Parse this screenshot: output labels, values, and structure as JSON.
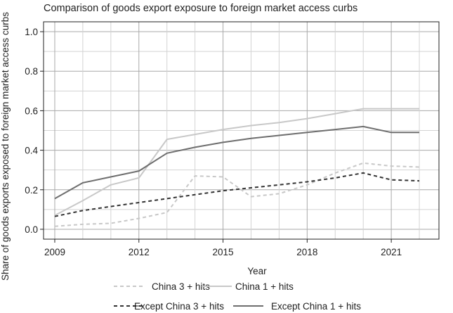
{
  "chart_data": {
    "type": "line",
    "title": "Comparison of goods export exposure to foreign market access curbs",
    "xlabel": "Year",
    "ylabel": "Share of goods exports exposed to foreign market access curbs",
    "xlim": [
      2008.6,
      2022.7
    ],
    "ylim": [
      -0.05,
      1.05
    ],
    "xticks": [
      2009,
      2012,
      2015,
      2018,
      2021
    ],
    "yticks": [
      0.0,
      0.2,
      0.4,
      0.6,
      0.8,
      1.0
    ],
    "xtick_labels": [
      "2009",
      "2012",
      "2015",
      "2018",
      "2021"
    ],
    "ytick_labels": [
      "0.0",
      "0.2",
      "0.4",
      "0.6",
      "0.8",
      "1.0"
    ],
    "grid": true,
    "legend_position": "bottom",
    "x": [
      2009,
      2010,
      2011,
      2012,
      2013,
      2014,
      2015,
      2016,
      2017,
      2018,
      2019,
      2020,
      2021,
      2022
    ],
    "series": [
      {
        "name": "China 3 + hits",
        "color": "#c8c8c8",
        "dash": "dashed",
        "values": [
          0.015,
          0.025,
          0.03,
          0.055,
          0.085,
          0.27,
          0.265,
          0.165,
          0.18,
          0.225,
          0.285,
          0.335,
          0.32,
          0.315
        ]
      },
      {
        "name": "China 1 + hits",
        "color": "#c8c8c8",
        "dash": "solid",
        "values": [
          0.07,
          0.145,
          0.225,
          0.26,
          0.455,
          0.48,
          0.505,
          0.525,
          0.54,
          0.56,
          0.585,
          0.61,
          0.61,
          0.61
        ]
      },
      {
        "name": "Except China 3 + hits",
        "color": "#333333",
        "dash": "dashed",
        "values": [
          0.065,
          0.095,
          0.115,
          0.135,
          0.155,
          0.175,
          0.195,
          0.21,
          0.225,
          0.24,
          0.26,
          0.285,
          0.25,
          0.245
        ]
      },
      {
        "name": "Except China 1 + hits",
        "color": "#6e6e6e",
        "dash": "solid",
        "values": [
          0.155,
          0.235,
          0.265,
          0.295,
          0.385,
          0.415,
          0.44,
          0.46,
          0.475,
          0.49,
          0.505,
          0.52,
          0.49,
          0.49
        ]
      }
    ]
  }
}
